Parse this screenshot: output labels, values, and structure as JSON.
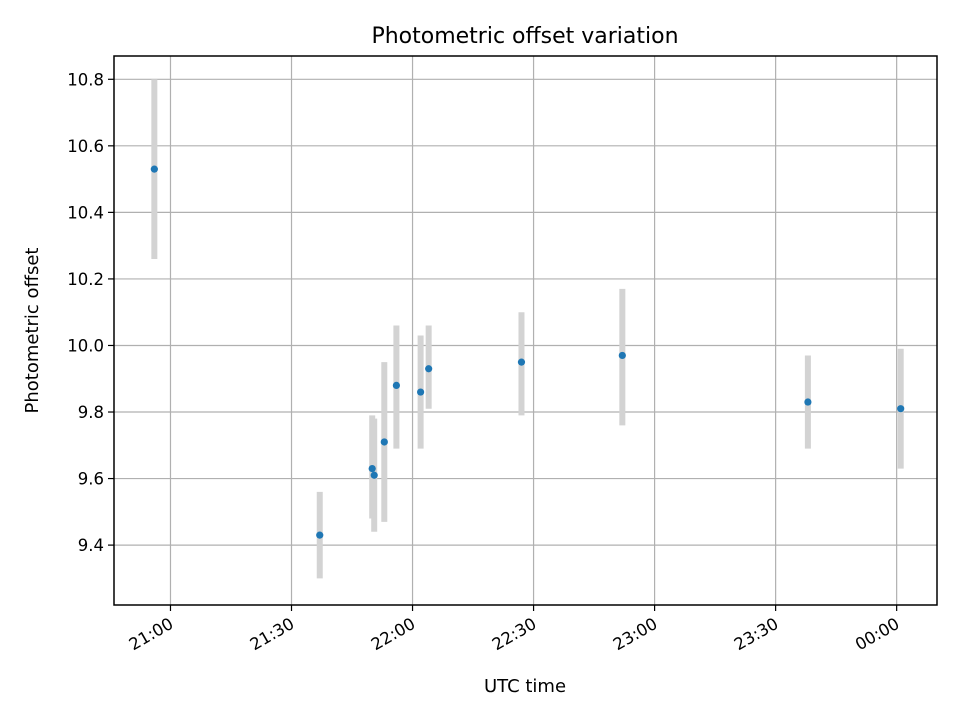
{
  "chart_data": {
    "type": "scatter",
    "title": "Photometric offset variation",
    "xlabel": "UTC time",
    "ylabel": "Photometric offset",
    "xlim": [
      "2000-01-01T20:46:00",
      "2000-01-02T00:10:00"
    ],
    "ylim": [
      9.22,
      10.87
    ],
    "grid": true,
    "xticks": [
      {
        "t": "2000-01-01T21:00:00",
        "label": "21:00"
      },
      {
        "t": "2000-01-01T21:30:00",
        "label": "21:30"
      },
      {
        "t": "2000-01-01T22:00:00",
        "label": "22:00"
      },
      {
        "t": "2000-01-01T22:30:00",
        "label": "22:30"
      },
      {
        "t": "2000-01-01T23:00:00",
        "label": "23:00"
      },
      {
        "t": "2000-01-01T23:30:00",
        "label": "23:30"
      },
      {
        "t": "2000-01-02T00:00:00",
        "label": "00:00"
      }
    ],
    "yticks": [
      {
        "v": 9.4,
        "label": "9.4"
      },
      {
        "v": 9.6,
        "label": "9.6"
      },
      {
        "v": 9.8,
        "label": "9.8"
      },
      {
        "v": 10.0,
        "label": "10.0"
      },
      {
        "v": 10.2,
        "label": "10.2"
      },
      {
        "v": 10.4,
        "label": "10.4"
      },
      {
        "v": 10.6,
        "label": "10.6"
      },
      {
        "v": 10.8,
        "label": "10.8"
      }
    ],
    "points": [
      {
        "t": "2000-01-01T20:56:00",
        "y": 10.53,
        "low": 10.26,
        "high": 10.8
      },
      {
        "t": "2000-01-01T21:37:00",
        "y": 9.43,
        "low": 9.3,
        "high": 9.56
      },
      {
        "t": "2000-01-01T21:50:00",
        "y": 9.63,
        "low": 9.48,
        "high": 9.79
      },
      {
        "t": "2000-01-01T21:50:30",
        "y": 9.61,
        "low": 9.44,
        "high": 9.78
      },
      {
        "t": "2000-01-01T21:53:00",
        "y": 9.71,
        "low": 9.47,
        "high": 9.95
      },
      {
        "t": "2000-01-01T21:56:00",
        "y": 9.88,
        "low": 9.69,
        "high": 10.06
      },
      {
        "t": "2000-01-01T22:02:00",
        "y": 9.86,
        "low": 9.69,
        "high": 10.03
      },
      {
        "t": "2000-01-01T22:04:00",
        "y": 9.93,
        "low": 9.81,
        "high": 10.06
      },
      {
        "t": "2000-01-01T22:27:00",
        "y": 9.95,
        "low": 9.79,
        "high": 10.1
      },
      {
        "t": "2000-01-01T22:52:00",
        "y": 9.97,
        "low": 9.76,
        "high": 10.17
      },
      {
        "t": "2000-01-01T23:38:00",
        "y": 9.83,
        "low": 9.69,
        "high": 9.97
      },
      {
        "t": "2000-01-02T00:01:00",
        "y": 9.81,
        "low": 9.63,
        "high": 9.99
      }
    ],
    "colors": {
      "point": "#1f77b4",
      "errorbar": "#d3d3d3",
      "grid": "#b0b0b0"
    }
  }
}
